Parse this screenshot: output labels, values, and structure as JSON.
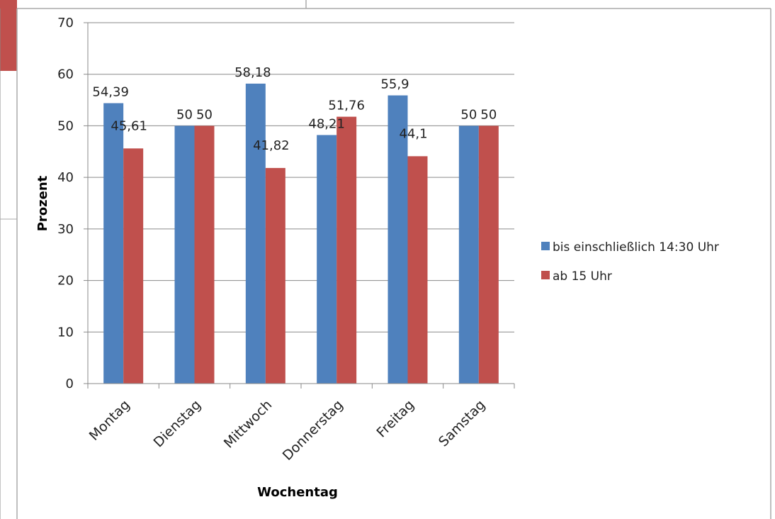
{
  "chart_data": {
    "type": "bar",
    "categories": [
      "Montag",
      "Dienstag",
      "Mittwoch",
      "Donnerstag",
      "Freitag",
      "Samstag"
    ],
    "series": [
      {
        "name": "bis einschließlich 14:30 Uhr",
        "color": "#4f81bd",
        "values": [
          54.39,
          50,
          58.18,
          48.21,
          55.9,
          50
        ],
        "labels": [
          "54,39",
          "50",
          "58,18",
          "48,21",
          "55,9",
          "50"
        ]
      },
      {
        "name": "ab 15 Uhr",
        "color": "#c0504d",
        "values": [
          45.61,
          50,
          41.82,
          51.76,
          44.1,
          50
        ],
        "labels": [
          "45,61",
          "50",
          "41,82",
          "51,76",
          "44,1",
          "50"
        ]
      }
    ],
    "xlabel": "Wochentag",
    "ylabel": "Prozent",
    "ylim": [
      0,
      70
    ],
    "yticks": [
      0,
      10,
      20,
      30,
      40,
      50,
      60,
      70
    ],
    "grid": true,
    "legend": "right"
  }
}
